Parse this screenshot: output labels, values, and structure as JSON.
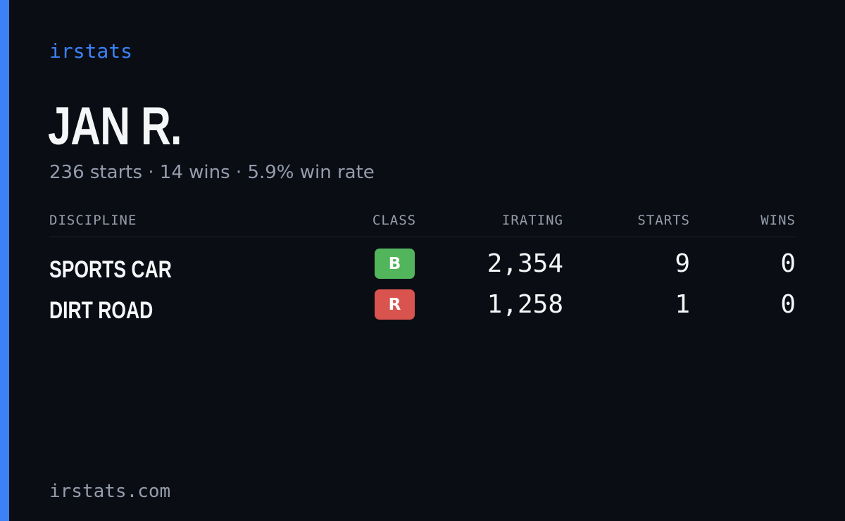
{
  "brand": {
    "name": "irstats",
    "accent_color": "#3b82f6"
  },
  "driver": {
    "name": "JAN R.",
    "summary": "236 starts · 14 wins · 5.9% win rate"
  },
  "table": {
    "headers": {
      "discipline": "DISCIPLINE",
      "class": "CLASS",
      "irating": "IRATING",
      "starts": "STARTS",
      "wins": "WINS"
    },
    "rows": [
      {
        "discipline": "SPORTS CAR",
        "class": "B",
        "class_color": "#52b55c",
        "irating": "2,354",
        "starts": "9",
        "wins": "0"
      },
      {
        "discipline": "DIRT ROAD",
        "class": "R",
        "class_color": "#d9534f",
        "irating": "1,258",
        "starts": "1",
        "wins": "0"
      }
    ]
  },
  "footer": {
    "url": "irstats.com"
  }
}
